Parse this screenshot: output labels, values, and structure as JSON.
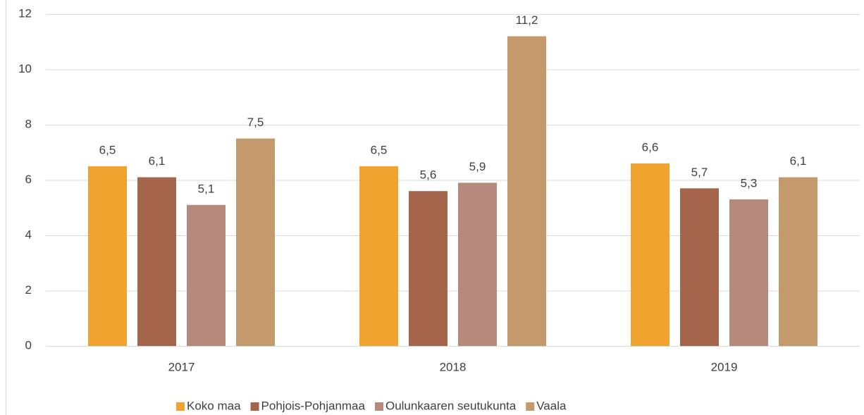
{
  "chart_data": {
    "type": "bar",
    "categories": [
      "2017",
      "2018",
      "2019"
    ],
    "series": [
      {
        "name": "Koko maa",
        "color": "#f0a42f",
        "values": [
          6.5,
          6.5,
          6.6
        ],
        "value_labels": [
          "6,5",
          "6,5",
          "6,6"
        ]
      },
      {
        "name": "Pohjois-Pohjanmaa",
        "color": "#a5654d",
        "values": [
          6.1,
          5.6,
          5.7
        ],
        "value_labels": [
          "6,1",
          "5,6",
          "5,7"
        ]
      },
      {
        "name": "Oulunkaaren seutukunta",
        "color": "#b5897c",
        "values": [
          5.1,
          5.9,
          5.3
        ],
        "value_labels": [
          "5,1",
          "5,9",
          "5,3"
        ]
      },
      {
        "name": "Vaala",
        "color": "#c49a6c",
        "values": [
          7.5,
          11.2,
          6.1
        ],
        "value_labels": [
          "7,5",
          "11,2",
          "6,1"
        ]
      }
    ],
    "ylim": [
      0,
      12
    ],
    "yticks": [
      0,
      2,
      4,
      6,
      8,
      10,
      12
    ],
    "grid": true,
    "legend": "bottom"
  }
}
